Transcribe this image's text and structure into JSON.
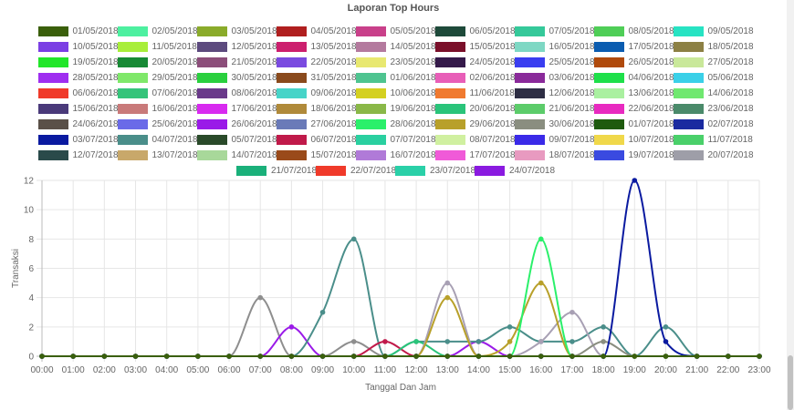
{
  "chart_data": {
    "type": "line",
    "title": "Laporan Top Hours",
    "xlabel": "Tanggal Dan Jam",
    "ylabel": "Transaksi",
    "x": [
      "00:00",
      "01:00",
      "02:00",
      "03:00",
      "04:00",
      "05:00",
      "06:00",
      "07:00",
      "08:00",
      "09:00",
      "10:00",
      "11:00",
      "12:00",
      "13:00",
      "14:00",
      "15:00",
      "16:00",
      "17:00",
      "18:00",
      "19:00",
      "20:00",
      "21:00",
      "22:00",
      "23:00"
    ],
    "y_ticks": [
      0,
      2,
      4,
      6,
      8,
      10,
      12
    ],
    "ylim": [
      0,
      12
    ],
    "grid": true,
    "legend_position": "top",
    "legend": [
      {
        "label": "01/05/2018",
        "color": "#3a5f0b"
      },
      {
        "label": "02/05/2018",
        "color": "#4df0a0"
      },
      {
        "label": "03/05/2018",
        "color": "#8aab2a"
      },
      {
        "label": "04/05/2018",
        "color": "#b01f1f"
      },
      {
        "label": "05/05/2018",
        "color": "#c9408a"
      },
      {
        "label": "06/05/2018",
        "color": "#1e4a3a"
      },
      {
        "label": "07/05/2018",
        "color": "#35c99a"
      },
      {
        "label": "08/05/2018",
        "color": "#4fce57"
      },
      {
        "label": "09/05/2018",
        "color": "#27e3c3"
      },
      {
        "label": "10/05/2018",
        "color": "#7b3fe4"
      },
      {
        "label": "11/05/2018",
        "color": "#a8ee3a"
      },
      {
        "label": "12/05/2018",
        "color": "#5c4a7e"
      },
      {
        "label": "13/05/2018",
        "color": "#cc1f6e"
      },
      {
        "label": "14/05/2018",
        "color": "#b47a9e"
      },
      {
        "label": "15/05/2018",
        "color": "#7a0f2a"
      },
      {
        "label": "16/05/2018",
        "color": "#7ed8c4"
      },
      {
        "label": "17/05/2018",
        "color": "#0b5cb0"
      },
      {
        "label": "18/05/2018",
        "color": "#8c8044"
      },
      {
        "label": "19/05/2018",
        "color": "#22e62a"
      },
      {
        "label": "20/05/2018",
        "color": "#178a35"
      },
      {
        "label": "21/05/2018",
        "color": "#8c4e7a"
      },
      {
        "label": "22/05/2018",
        "color": "#7a4be0"
      },
      {
        "label": "23/05/2018",
        "color": "#e8e870"
      },
      {
        "label": "24/05/2018",
        "color": "#351a4a"
      },
      {
        "label": "25/05/2018",
        "color": "#3a3ef0"
      },
      {
        "label": "26/05/2018",
        "color": "#b04a0c"
      },
      {
        "label": "27/05/2018",
        "color": "#c9e89a"
      },
      {
        "label": "28/05/2018",
        "color": "#9f2ef0"
      },
      {
        "label": "29/05/2018",
        "color": "#7fe86a"
      },
      {
        "label": "30/05/2018",
        "color": "#2ad03e"
      },
      {
        "label": "31/05/2018",
        "color": "#8a4a1c"
      },
      {
        "label": "01/06/2018",
        "color": "#4ec490"
      },
      {
        "label": "02/06/2018",
        "color": "#e85eb8"
      },
      {
        "label": "03/06/2018",
        "color": "#8a2a9a"
      },
      {
        "label": "04/06/2018",
        "color": "#1ee04a"
      },
      {
        "label": "05/06/2018",
        "color": "#3ad0e8"
      },
      {
        "label": "06/06/2018",
        "color": "#f03a2a"
      },
      {
        "label": "07/06/2018",
        "color": "#35c47a"
      },
      {
        "label": "08/06/2018",
        "color": "#6a3a8a"
      },
      {
        "label": "09/06/2018",
        "color": "#47d4c8"
      },
      {
        "label": "10/06/2018",
        "color": "#d4d020"
      },
      {
        "label": "11/06/2018",
        "color": "#f07a30"
      },
      {
        "label": "12/06/2018",
        "color": "#2e2e44"
      },
      {
        "label": "13/06/2018",
        "color": "#aaf0a0"
      },
      {
        "label": "14/06/2018",
        "color": "#70e870"
      },
      {
        "label": "15/06/2018",
        "color": "#4a3a7a"
      },
      {
        "label": "16/06/2018",
        "color": "#c97a7a"
      },
      {
        "label": "17/06/2018",
        "color": "#d82af0"
      },
      {
        "label": "18/06/2018",
        "color": "#b08a3a"
      },
      {
        "label": "19/06/2018",
        "color": "#8ab848"
      },
      {
        "label": "20/06/2018",
        "color": "#2ac47a"
      },
      {
        "label": "21/06/2018",
        "color": "#5ccc6a"
      },
      {
        "label": "22/06/2018",
        "color": "#e82ac0"
      },
      {
        "label": "23/06/2018",
        "color": "#4a8a6a"
      },
      {
        "label": "24/06/2018",
        "color": "#5a5048"
      },
      {
        "label": "25/06/2018",
        "color": "#6a6ae8"
      },
      {
        "label": "26/06/2018",
        "color": "#9a1ae8"
      },
      {
        "label": "27/06/2018",
        "color": "#6a7ab8"
      },
      {
        "label": "28/06/2018",
        "color": "#2af06a"
      },
      {
        "label": "29/06/2018",
        "color": "#b8a02a"
      },
      {
        "label": "30/06/2018",
        "color": "#8a8e80"
      },
      {
        "label": "01/07/2018",
        "color": "#1e5a0e"
      },
      {
        "label": "02/07/2018",
        "color": "#1a2aa0"
      },
      {
        "label": "03/07/2018",
        "color": "#0a1aa0"
      },
      {
        "label": "04/07/2018",
        "color": "#4a8e8a"
      },
      {
        "label": "05/07/2018",
        "color": "#2a4a2a"
      },
      {
        "label": "06/07/2018",
        "color": "#c01a4a"
      },
      {
        "label": "07/07/2018",
        "color": "#2ad0a0"
      },
      {
        "label": "08/07/2018",
        "color": "#d0f0a0"
      },
      {
        "label": "09/07/2018",
        "color": "#3a2ae8"
      },
      {
        "label": "10/07/2018",
        "color": "#f0d84a"
      },
      {
        "label": "11/07/2018",
        "color": "#4ad06a"
      },
      {
        "label": "12/07/2018",
        "color": "#2a4a4a"
      },
      {
        "label": "13/07/2018",
        "color": "#c8a86a"
      },
      {
        "label": "14/07/2018",
        "color": "#a8d89a"
      },
      {
        "label": "15/07/2018",
        "color": "#9a4a1a"
      },
      {
        "label": "16/07/2018",
        "color": "#b07ad8"
      },
      {
        "label": "17/07/2018",
        "color": "#f05ad8"
      },
      {
        "label": "18/07/2018",
        "color": "#e89ac0"
      },
      {
        "label": "19/07/2018",
        "color": "#3a4ae0"
      },
      {
        "label": "20/07/2018",
        "color": "#9e9ea8"
      },
      {
        "label": "21/07/2018",
        "color": "#1ab07a"
      },
      {
        "label": "22/07/2018",
        "color": "#f03a2a"
      },
      {
        "label": "23/07/2018",
        "color": "#2ad0a8"
      },
      {
        "label": "24/07/2018",
        "color": "#8a1ae0"
      }
    ],
    "series": [
      {
        "color": "#8e8e8e",
        "values": [
          0,
          0,
          0,
          0,
          0,
          0,
          0,
          4,
          0,
          0,
          1,
          0,
          0,
          0,
          0,
          0,
          0,
          0,
          0,
          0,
          0,
          0,
          0,
          0
        ]
      },
      {
        "color": "#9a1ae8",
        "values": [
          0,
          0,
          0,
          0,
          0,
          0,
          0,
          0,
          2,
          0,
          0,
          0,
          0,
          0,
          1,
          0,
          0,
          0,
          0,
          0,
          0,
          0,
          0,
          0
        ]
      },
      {
        "color": "#4a8e8a",
        "values": [
          0,
          0,
          0,
          0,
          0,
          0,
          0,
          0,
          0,
          3,
          8,
          0,
          1,
          1,
          1,
          2,
          1,
          1,
          2,
          0,
          2,
          0,
          0,
          0
        ]
      },
      {
        "color": "#c01a4a",
        "values": [
          0,
          0,
          0,
          0,
          0,
          0,
          0,
          0,
          0,
          0,
          0,
          1,
          0,
          0,
          0,
          0,
          0,
          0,
          0,
          0,
          0,
          0,
          0,
          0
        ]
      },
      {
        "color": "#2ac47a",
        "values": [
          0,
          0,
          0,
          0,
          0,
          0,
          0,
          0,
          0,
          0,
          0,
          0,
          1,
          0,
          0,
          0,
          0,
          0,
          0,
          0,
          0,
          0,
          0,
          0
        ]
      },
      {
        "color": "#a8a0b4",
        "values": [
          0,
          0,
          0,
          0,
          0,
          0,
          0,
          0,
          0,
          0,
          0,
          0,
          0,
          5,
          0,
          0,
          1,
          3,
          0,
          0,
          0,
          0,
          0,
          0
        ]
      },
      {
        "color": "#b8a02a",
        "values": [
          0,
          0,
          0,
          0,
          0,
          0,
          0,
          0,
          0,
          0,
          0,
          0,
          0,
          4,
          0,
          1,
          5,
          0,
          0,
          0,
          0,
          0,
          0,
          0
        ]
      },
      {
        "color": "#2af06a",
        "values": [
          0,
          0,
          0,
          0,
          0,
          0,
          0,
          0,
          0,
          0,
          0,
          0,
          0,
          0,
          0,
          0,
          8,
          0,
          0,
          0,
          0,
          0,
          0,
          0
        ]
      },
      {
        "color": "#8a8e80",
        "values": [
          0,
          0,
          0,
          0,
          0,
          0,
          0,
          0,
          0,
          0,
          0,
          0,
          0,
          0,
          0,
          0,
          0,
          0,
          1,
          0,
          0,
          0,
          0,
          0
        ]
      },
      {
        "color": "#0a1aa0",
        "values": [
          0,
          0,
          0,
          0,
          0,
          0,
          0,
          0,
          0,
          0,
          0,
          0,
          0,
          0,
          0,
          0,
          0,
          0,
          0,
          12,
          1,
          0,
          0,
          0
        ]
      },
      {
        "color": "#3a5f0b",
        "values": [
          0,
          0,
          0,
          0,
          0,
          0,
          0,
          0,
          0,
          0,
          0,
          0,
          0,
          0,
          0,
          0,
          0,
          0,
          0,
          0,
          0,
          0,
          0,
          0
        ]
      }
    ]
  }
}
